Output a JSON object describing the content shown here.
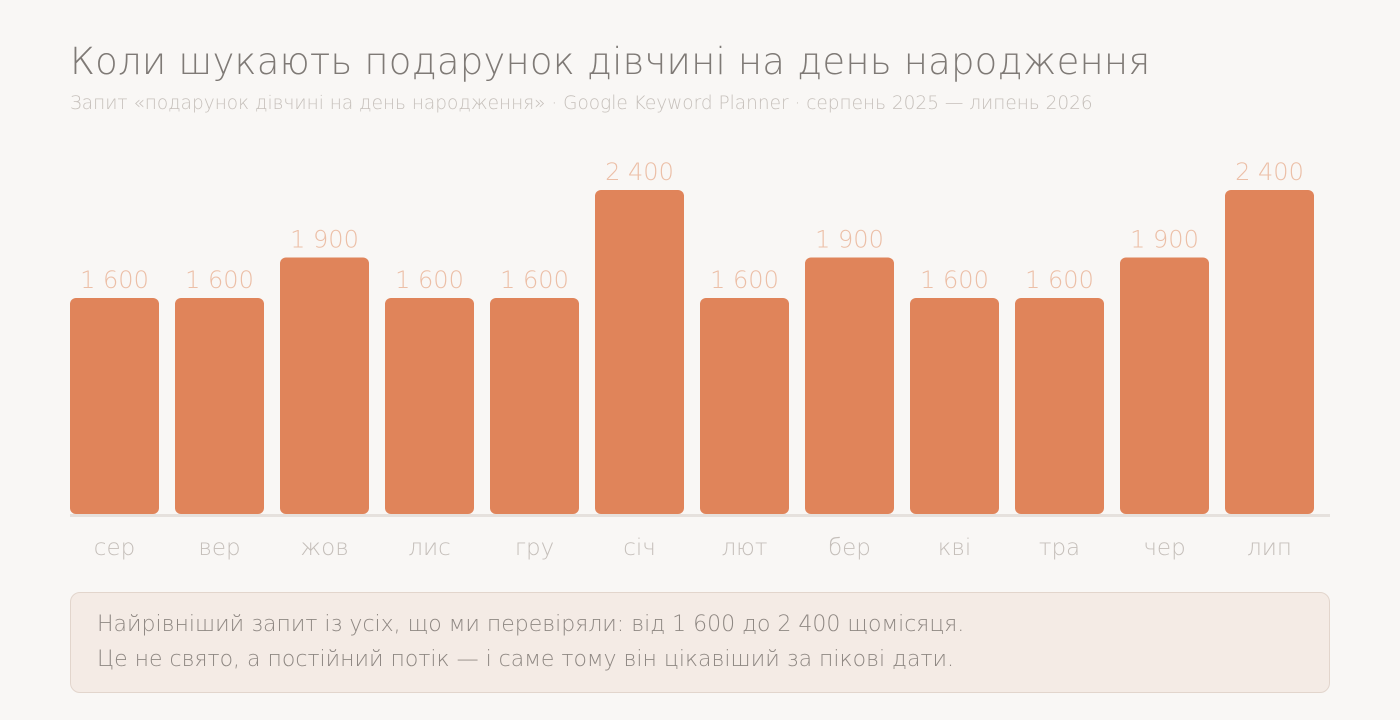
{
  "header": {
    "title": "Коли шукають подарунок дівчині на день народження",
    "subtitle": "Запит «подарунок дівчині на день народження» · Google Keyword Planner · серпень 2025 — липень 2026"
  },
  "chart_data": {
    "type": "bar",
    "categories": [
      "сер",
      "вер",
      "жов",
      "лис",
      "гру",
      "січ",
      "лют",
      "бер",
      "кві",
      "тра",
      "чер",
      "лип"
    ],
    "values": [
      1600,
      1600,
      1900,
      1600,
      1600,
      2400,
      1600,
      1900,
      1600,
      1600,
      1900,
      2400
    ],
    "value_labels": [
      "1 600",
      "1 600",
      "1 900",
      "1 600",
      "1 600",
      "2 400",
      "1 600",
      "1 900",
      "1 600",
      "1 600",
      "1 900",
      "2 400"
    ],
    "ylim": [
      0,
      2400
    ],
    "grid": false,
    "colors": {
      "bar": "#e0845a",
      "baseline": "#e6e1dd",
      "value_label": "#ecbfa7",
      "tick_label": "#c5bfba"
    }
  },
  "note": {
    "lines": [
      "Найрівніший запит із усіх, що ми перевіряли: від 1 600 до 2 400 щомісяця.",
      "Це не свято, а постійний потік — і саме тому він цікавіший за пікові дати."
    ]
  }
}
